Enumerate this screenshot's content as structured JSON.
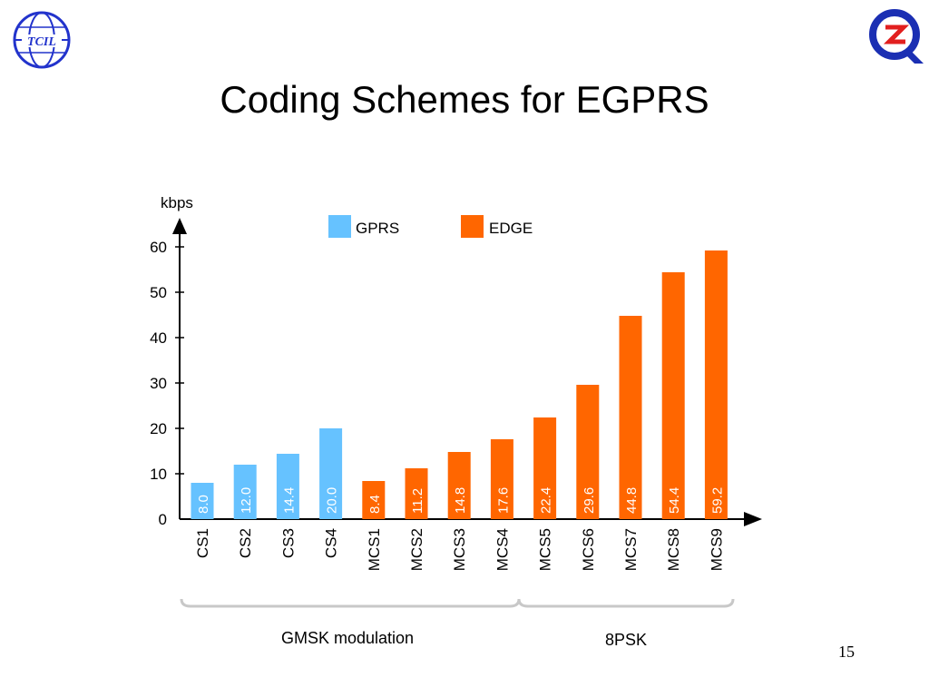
{
  "slide": {
    "title": "Coding Schemes for EGPRS",
    "page_number": "15"
  },
  "logos": {
    "left": "tcil-logo",
    "right": "quality-logo"
  },
  "colors": {
    "gprs": "#66c2ff",
    "edge": "#ff6600",
    "bracket": "#c8c8c8",
    "axis": "#000000"
  },
  "chart_data": {
    "type": "bar",
    "ylabel": "kbps",
    "ylim": [
      0,
      60
    ],
    "yticks": [
      "0",
      "10",
      "20",
      "30",
      "40",
      "50",
      "60"
    ],
    "categories": [
      "CS1",
      "CS2",
      "CS3",
      "CS4",
      "MCS1",
      "MCS2",
      "MCS3",
      "MCS4",
      "MCS5",
      "MCS6",
      "MCS7",
      "MCS8",
      "MCS9"
    ],
    "series": [
      {
        "name": "GPRS",
        "values": [
          8.0,
          12.0,
          14.4,
          20.0,
          null,
          null,
          null,
          null,
          null,
          null,
          null,
          null,
          null
        ],
        "labels": [
          "8.0",
          "12.0",
          "14.4",
          "20.0",
          "",
          "",
          "",
          "",
          "",
          "",
          "",
          "",
          ""
        ]
      },
      {
        "name": "EDGE",
        "values": [
          null,
          null,
          null,
          null,
          8.4,
          11.2,
          14.8,
          17.6,
          22.4,
          29.6,
          44.8,
          54.4,
          59.2
        ],
        "labels": [
          "",
          "",
          "",
          "",
          "8.4",
          "11.2",
          "14.8",
          "17.6",
          "22.4",
          "29.6",
          "44.8",
          "54.4",
          "59.2"
        ]
      }
    ],
    "legend": {
      "placement": "top",
      "entries": [
        "GPRS",
        "EDGE"
      ]
    },
    "groups": [
      {
        "label": "GMSK modulation",
        "from": 0,
        "to": 7
      },
      {
        "label": "8PSK",
        "from": 8,
        "to": 12
      }
    ],
    "grid": false
  }
}
